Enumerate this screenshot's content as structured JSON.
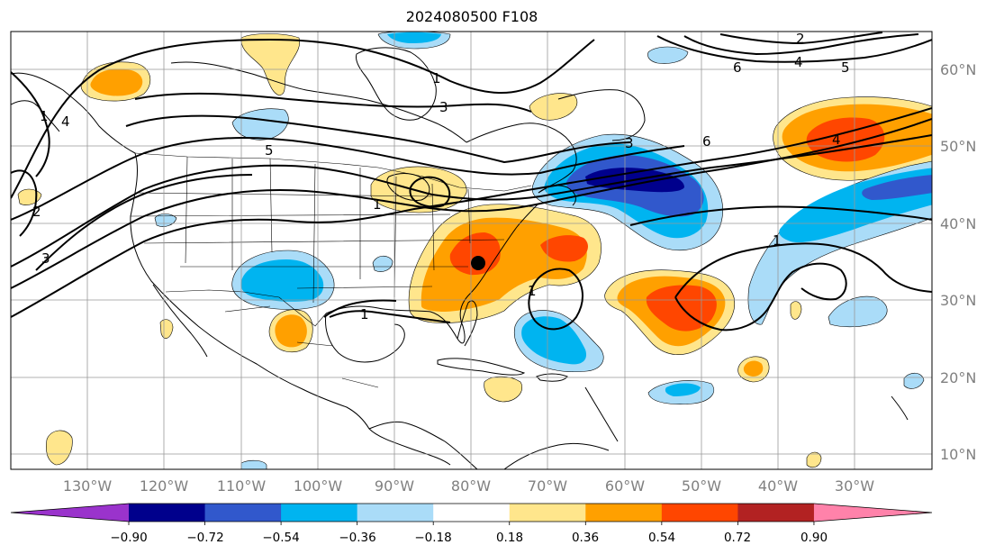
{
  "title": "2024080500 F108",
  "lon_labels": [
    "130°W",
    "120°W",
    "110°W",
    "100°W",
    "90°W",
    "80°W",
    "70°W",
    "60°W",
    "50°W",
    "40°W",
    "30°W"
  ],
  "lat_labels": [
    "60°N",
    "50°N",
    "40°N",
    "30°N",
    "20°N",
    "10°N"
  ],
  "colorbar": {
    "labels": [
      "−0.90",
      "−0.72",
      "−0.54",
      "−0.36",
      "−0.18",
      "0.18",
      "0.36",
      "0.54",
      "0.72",
      "0.90"
    ],
    "colors": [
      "#9a33cc",
      "#00008c",
      "#3158cc",
      "#00b4f0",
      "#aadcf8",
      "#ffffff",
      "#ffe68c",
      "#ffa000",
      "#ff4600",
      "#b22222",
      "#ff82aa"
    ]
  },
  "contour_labels": [
    "1",
    "1",
    "1",
    "1",
    "1",
    "1",
    "2",
    "2",
    "3",
    "3",
    "3",
    "4",
    "4",
    "4",
    "5",
    "5",
    "6",
    "6"
  ],
  "anomaly_colors": {
    "weak_pos": "#ffe68c",
    "mod_pos": "#ffa000",
    "strong_pos": "#ff4600",
    "weak_neg": "#aadcf8",
    "mod_neg": "#00b4f0",
    "strong_neg": "#3158cc",
    "extreme_neg": "#00008c"
  }
}
